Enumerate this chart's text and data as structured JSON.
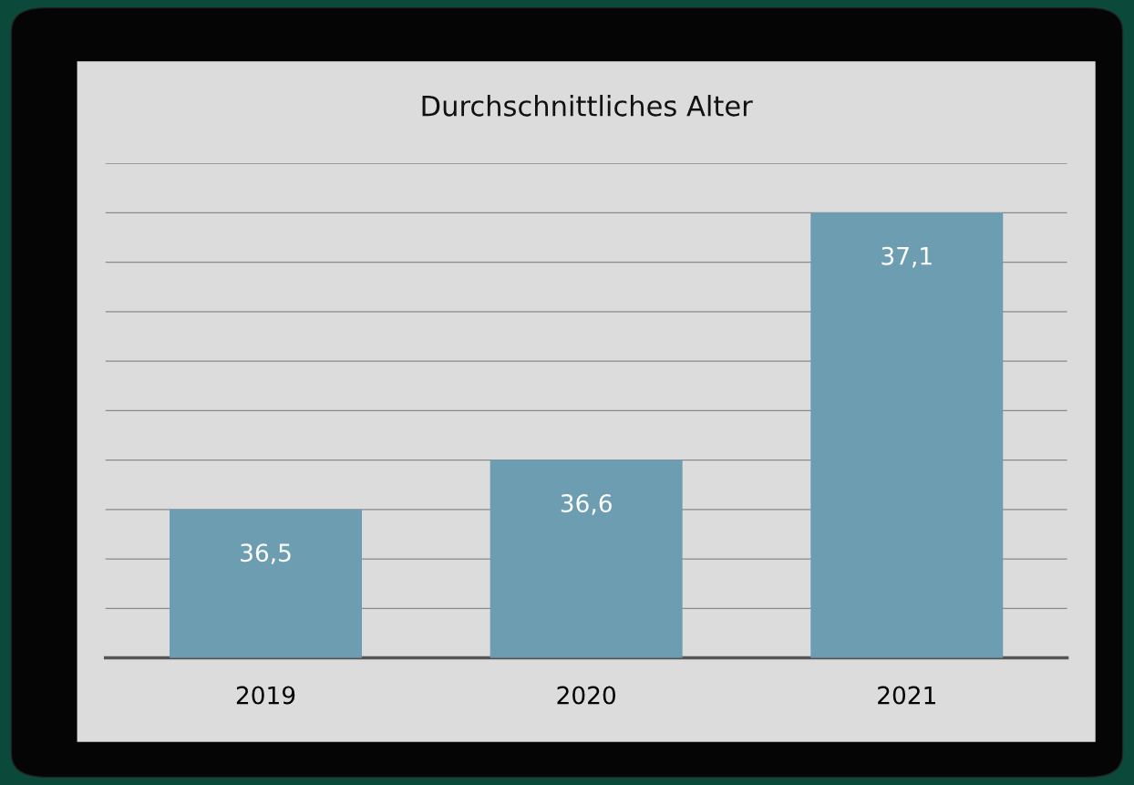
{
  "chart_data": {
    "type": "bar",
    "title": "Durchschnittliches Alter",
    "categories": [
      "2019",
      "2020",
      "2021"
    ],
    "values": [
      36.5,
      36.6,
      37.1
    ],
    "value_labels": [
      "36,5",
      "36,6",
      "37,1"
    ],
    "color": "#6c9db0",
    "ylim": [
      36.2,
      37.2
    ],
    "yticks": [
      {
        "value": 36.3,
        "label": null
      },
      {
        "value": 36.4,
        "label": null
      },
      {
        "value": 36.5,
        "label": null
      },
      {
        "value": 36.6,
        "label": null
      },
      {
        "value": 36.7,
        "label": null
      },
      {
        "value": 36.8,
        "label": null
      },
      {
        "value": 36.9,
        "label": null
      },
      {
        "value": 37.0,
        "label": null
      },
      {
        "value": 37.1,
        "label": null
      },
      {
        "value": 37.2,
        "label": null
      }
    ],
    "grid": "y",
    "tick_labels": "x"
  }
}
